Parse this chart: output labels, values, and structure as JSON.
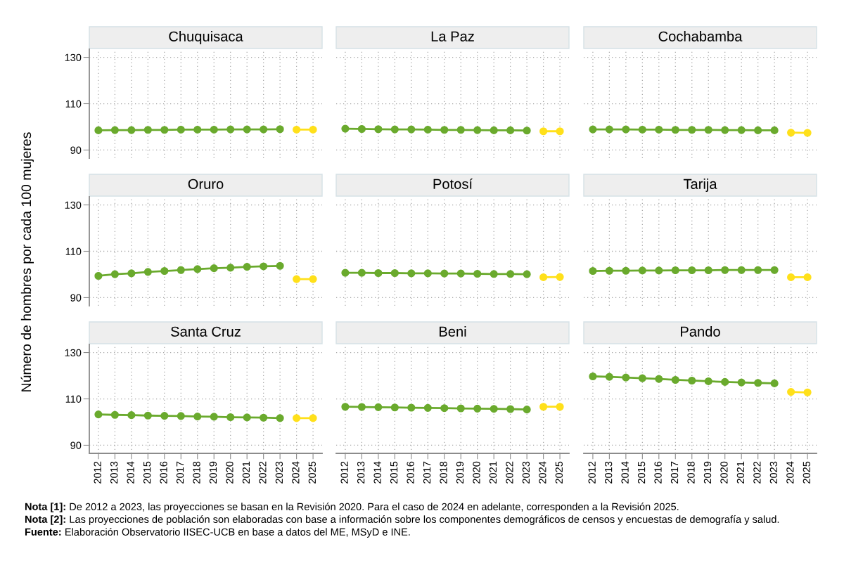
{
  "chart_data": [
    {
      "type": "line",
      "title": "Chuquisaca",
      "series": [
        {
          "color": "#6aaa2d",
          "x": [
            2012,
            2013,
            2014,
            2015,
            2016,
            2017,
            2018,
            2019,
            2020,
            2021,
            2022,
            2023
          ],
          "values": [
            98.5,
            98.6,
            98.6,
            98.7,
            98.7,
            98.8,
            98.8,
            98.8,
            98.9,
            98.9,
            98.9,
            99.0
          ]
        },
        {
          "color": "#ffe01a",
          "x": [
            2024,
            2025
          ],
          "values": [
            98.8,
            98.8
          ]
        }
      ],
      "xlim": [
        2011.45,
        2025.55
      ],
      "xticks": [
        2012,
        2013,
        2014,
        2015,
        2016,
        2017,
        2018,
        2019,
        2020,
        2021,
        2022,
        2023,
        2024,
        2025
      ],
      "ylim": [
        86.5,
        133.5
      ],
      "yticks": [
        90,
        110,
        130
      ],
      "grid": true,
      "marker": "circle",
      "line_style": "solid",
      "tick_labels": "y"
    },
    {
      "type": "line",
      "title": "La Paz",
      "series": [
        {
          "color": "#6aaa2d",
          "x": [
            2012,
            2013,
            2014,
            2015,
            2016,
            2017,
            2018,
            2019,
            2020,
            2021,
            2022,
            2023
          ],
          "values": [
            99.2,
            99.1,
            99.0,
            98.9,
            98.9,
            98.8,
            98.7,
            98.7,
            98.6,
            98.5,
            98.5,
            98.4
          ]
        },
        {
          "color": "#ffe01a",
          "x": [
            2024,
            2025
          ],
          "values": [
            98.1,
            98.1
          ]
        }
      ],
      "xlim": [
        2011.45,
        2025.55
      ],
      "xticks": [
        2012,
        2013,
        2014,
        2015,
        2016,
        2017,
        2018,
        2019,
        2020,
        2021,
        2022,
        2023,
        2024,
        2025
      ],
      "ylim": [
        86.5,
        133.5
      ],
      "yticks": [
        90,
        110,
        130
      ],
      "grid": true,
      "marker": "circle",
      "line_style": "solid",
      "tick_labels": false
    },
    {
      "type": "line",
      "title": "Cochabamba",
      "series": [
        {
          "color": "#6aaa2d",
          "x": [
            2012,
            2013,
            2014,
            2015,
            2016,
            2017,
            2018,
            2019,
            2020,
            2021,
            2022,
            2023
          ],
          "values": [
            98.9,
            98.9,
            98.9,
            98.8,
            98.8,
            98.7,
            98.7,
            98.7,
            98.6,
            98.6,
            98.5,
            98.5
          ]
        },
        {
          "color": "#ffe01a",
          "x": [
            2024,
            2025
          ],
          "values": [
            97.5,
            97.4
          ]
        }
      ],
      "xlim": [
        2011.45,
        2025.55
      ],
      "xticks": [
        2012,
        2013,
        2014,
        2015,
        2016,
        2017,
        2018,
        2019,
        2020,
        2021,
        2022,
        2023,
        2024,
        2025
      ],
      "ylim": [
        86.5,
        133.5
      ],
      "yticks": [
        90,
        110,
        130
      ],
      "grid": true,
      "marker": "circle",
      "line_style": "solid",
      "tick_labels": false
    },
    {
      "type": "line",
      "title": "Oruro",
      "ylabel": "Número de hombres por cada 100 mujeres",
      "series": [
        {
          "color": "#6aaa2d",
          "x": [
            2012,
            2013,
            2014,
            2015,
            2016,
            2017,
            2018,
            2019,
            2020,
            2021,
            2022,
            2023
          ],
          "values": [
            99.4,
            100.1,
            100.5,
            101.1,
            101.5,
            101.9,
            102.3,
            102.7,
            102.9,
            103.3,
            103.5,
            103.7
          ]
        },
        {
          "color": "#ffe01a",
          "x": [
            2024,
            2025
          ],
          "values": [
            98.0,
            98.0
          ]
        }
      ],
      "xlim": [
        2011.45,
        2025.55
      ],
      "xticks": [
        2012,
        2013,
        2014,
        2015,
        2016,
        2017,
        2018,
        2019,
        2020,
        2021,
        2022,
        2023,
        2024,
        2025
      ],
      "ylim": [
        86.5,
        133.5
      ],
      "yticks": [
        90,
        110,
        130
      ],
      "grid": true,
      "marker": "circle",
      "line_style": "solid",
      "tick_labels": "y"
    },
    {
      "type": "line",
      "title": "Potosí",
      "series": [
        {
          "color": "#6aaa2d",
          "x": [
            2012,
            2013,
            2014,
            2015,
            2016,
            2017,
            2018,
            2019,
            2020,
            2021,
            2022,
            2023
          ],
          "values": [
            100.7,
            100.7,
            100.6,
            100.6,
            100.5,
            100.5,
            100.4,
            100.4,
            100.3,
            100.2,
            100.2,
            100.1
          ]
        },
        {
          "color": "#ffe01a",
          "x": [
            2024,
            2025
          ],
          "values": [
            98.8,
            98.9
          ]
        }
      ],
      "xlim": [
        2011.45,
        2025.55
      ],
      "xticks": [
        2012,
        2013,
        2014,
        2015,
        2016,
        2017,
        2018,
        2019,
        2020,
        2021,
        2022,
        2023,
        2024,
        2025
      ],
      "ylim": [
        86.5,
        133.5
      ],
      "yticks": [
        90,
        110,
        130
      ],
      "grid": true,
      "marker": "circle",
      "line_style": "solid",
      "tick_labels": false
    },
    {
      "type": "line",
      "title": "Tarija",
      "series": [
        {
          "color": "#6aaa2d",
          "x": [
            2012,
            2013,
            2014,
            2015,
            2016,
            2017,
            2018,
            2019,
            2020,
            2021,
            2022,
            2023
          ],
          "values": [
            101.5,
            101.6,
            101.6,
            101.7,
            101.7,
            101.8,
            101.8,
            101.8,
            101.9,
            101.9,
            101.9,
            101.9
          ]
        },
        {
          "color": "#ffe01a",
          "x": [
            2024,
            2025
          ],
          "values": [
            98.8,
            98.8
          ]
        }
      ],
      "xlim": [
        2011.45,
        2025.55
      ],
      "xticks": [
        2012,
        2013,
        2014,
        2015,
        2016,
        2017,
        2018,
        2019,
        2020,
        2021,
        2022,
        2023,
        2024,
        2025
      ],
      "ylim": [
        86.5,
        133.5
      ],
      "yticks": [
        90,
        110,
        130
      ],
      "grid": true,
      "marker": "circle",
      "line_style": "solid",
      "tick_labels": false
    },
    {
      "type": "line",
      "title": "Santa Cruz",
      "series": [
        {
          "color": "#6aaa2d",
          "x": [
            2012,
            2013,
            2014,
            2015,
            2016,
            2017,
            2018,
            2019,
            2020,
            2021,
            2022,
            2023
          ],
          "values": [
            103.3,
            103.1,
            103.0,
            102.8,
            102.7,
            102.6,
            102.4,
            102.3,
            102.1,
            102.0,
            101.9,
            101.7
          ]
        },
        {
          "color": "#ffe01a",
          "x": [
            2024,
            2025
          ],
          "values": [
            101.7,
            101.7
          ]
        }
      ],
      "xlim": [
        2011.45,
        2025.55
      ],
      "xticks": [
        2012,
        2013,
        2014,
        2015,
        2016,
        2017,
        2018,
        2019,
        2020,
        2021,
        2022,
        2023,
        2024,
        2025
      ],
      "ylim": [
        86.5,
        133.5
      ],
      "yticks": [
        90,
        110,
        130
      ],
      "grid": true,
      "marker": "circle",
      "line_style": "solid"
    },
    {
      "type": "line",
      "title": "Beni",
      "series": [
        {
          "color": "#6aaa2d",
          "x": [
            2012,
            2013,
            2014,
            2015,
            2016,
            2017,
            2018,
            2019,
            2020,
            2021,
            2022,
            2023
          ],
          "values": [
            106.6,
            106.5,
            106.4,
            106.3,
            106.2,
            106.1,
            106.0,
            105.9,
            105.8,
            105.7,
            105.6,
            105.4
          ]
        },
        {
          "color": "#ffe01a",
          "x": [
            2024,
            2025
          ],
          "values": [
            106.6,
            106.6
          ]
        }
      ],
      "xlim": [
        2011.45,
        2025.55
      ],
      "xticks": [
        2012,
        2013,
        2014,
        2015,
        2016,
        2017,
        2018,
        2019,
        2020,
        2021,
        2022,
        2023,
        2024,
        2025
      ],
      "ylim": [
        86.5,
        133.5
      ],
      "yticks": [
        90,
        110,
        130
      ],
      "grid": true,
      "marker": "circle",
      "line_style": "solid",
      "tick_labels": "x"
    },
    {
      "type": "line",
      "title": "Pando",
      "series": [
        {
          "color": "#6aaa2d",
          "x": [
            2012,
            2013,
            2014,
            2015,
            2016,
            2017,
            2018,
            2019,
            2020,
            2021,
            2022,
            2023
          ],
          "values": [
            119.7,
            119.5,
            119.2,
            118.9,
            118.6,
            118.2,
            117.9,
            117.6,
            117.3,
            117.1,
            116.9,
            116.7
          ]
        },
        {
          "color": "#ffe01a",
          "x": [
            2024,
            2025
          ],
          "values": [
            113.0,
            112.8
          ]
        }
      ],
      "xlim": [
        2011.45,
        2025.55
      ],
      "xticks": [
        2012,
        2013,
        2014,
        2015,
        2016,
        2017,
        2018,
        2019,
        2020,
        2021,
        2022,
        2023,
        2024,
        2025
      ],
      "ylim": [
        86.5,
        133.5
      ],
      "yticks": [
        90,
        110,
        130
      ],
      "grid": true,
      "marker": "circle",
      "line_style": "solid",
      "tick_labels": "x",
      "annotations": [
        "Nota [1]: De 2012 a 2023, las proyecciones se basan en la Revisión 2020. Para el caso de 2024 en adelante, corresponden a la Revisión 2025.",
        "Nota [2]: Las proyecciones de población son elaboradas con base a información sobre los componentes demográficos de censos y encuestas de demografía y salud.",
        "Fuente: Elaboración Observatorio IISEC-UCB en base a datos del ME, MSyD e INE."
      ]
    }
  ]
}
